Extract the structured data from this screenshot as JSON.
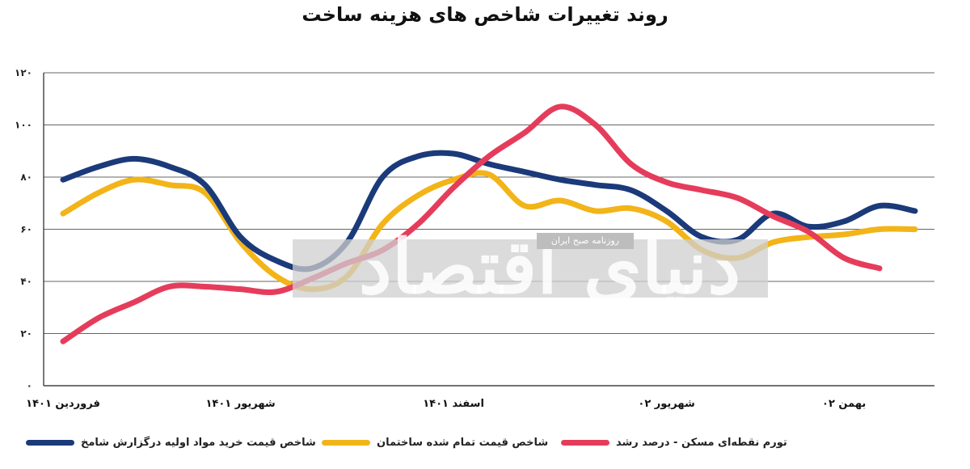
{
  "chart_data": {
    "type": "line",
    "title": "روند تغییرات شاخص های هزینه ساخت",
    "xlabel": "",
    "ylabel": "",
    "ylim": [
      0,
      120
    ],
    "yticks": [
      "۰",
      "۲۰",
      "۴۰",
      "۶۰",
      "۸۰",
      "۱۰۰",
      "۱۲۰"
    ],
    "x_tick_labels": [
      "فروردین ۱۴۰۱",
      "شهریور ۱۴۰۱",
      "اسفند ۱۴۰۱",
      "شهریور ۰۲",
      "بهمن ۰۲"
    ],
    "x_tick_positions": [
      0,
      5,
      11,
      17,
      22
    ],
    "grid": "horizontal",
    "legend_position": "bottom",
    "colors": {
      "navy": "#1b3a7a",
      "yellow": "#f2b418",
      "red": "#e63c5c"
    },
    "series": [
      {
        "name": "شاخص قیمت خرید مواد اولیه درگزارش شامخ",
        "color": "#1b3a7a",
        "values": [
          79,
          84,
          87,
          84,
          77,
          57,
          48,
          45,
          55,
          80,
          88,
          89,
          85,
          82,
          79,
          77,
          75,
          67,
          57,
          56,
          66,
          61,
          63,
          69,
          67
        ]
      },
      {
        "name": "شاخص قیمت تمام شده ساختمان",
        "color": "#f2b418",
        "values": [
          66,
          74,
          79,
          77,
          74,
          55,
          42,
          37,
          42,
          62,
          73,
          79,
          81,
          69,
          71,
          67,
          68,
          63,
          52,
          49,
          55,
          57,
          58,
          60,
          60
        ]
      },
      {
        "name": "تورم نقطه‌ای مسکن - درصد رشد",
        "color": "#e63c5c",
        "values": [
          17,
          26,
          32,
          38,
          38,
          37,
          36,
          41,
          47,
          52,
          62,
          76,
          88,
          97,
          107,
          100,
          85,
          78,
          75,
          72,
          65,
          59,
          49,
          45,
          null
        ]
      }
    ]
  },
  "watermark": {
    "newspaper": "روزنامه صبح ایران",
    "logo": "دنیای اقتصاد"
  }
}
